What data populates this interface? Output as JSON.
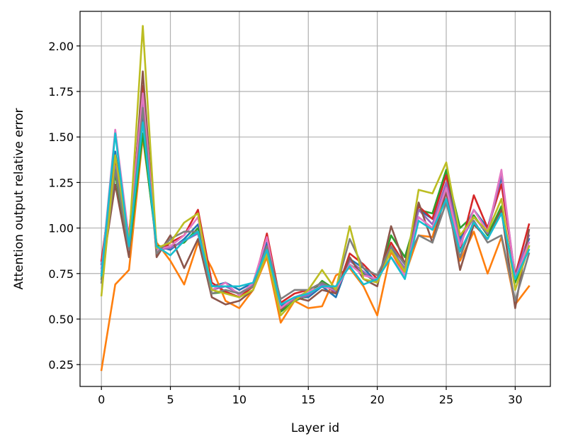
{
  "chart_data": {
    "type": "line",
    "xlabel": "Layer id",
    "ylabel": "Attention output relative error",
    "xlim": [
      -1.55,
      32.55
    ],
    "ylim": [
      0.13,
      2.19
    ],
    "xticks": [
      0,
      5,
      10,
      15,
      20,
      25,
      30
    ],
    "xtick_labels": [
      "0",
      "5",
      "10",
      "15",
      "20",
      "25",
      "30"
    ],
    "yticks": [
      0.25,
      0.5,
      0.75,
      1.0,
      1.25,
      1.5,
      1.75,
      2.0
    ],
    "ytick_labels": [
      "0.25",
      "0.50",
      "0.75",
      "1.00",
      "1.25",
      "1.50",
      "1.75",
      "2.00"
    ],
    "grid": true,
    "colors": [
      "#1f77b4",
      "#ff7f0e",
      "#2ca02c",
      "#d62728",
      "#9467bd",
      "#8c564b",
      "#e377c2",
      "#7f7f7f",
      "#bcbd22",
      "#17becf"
    ],
    "x": [
      0,
      1,
      2,
      3,
      4,
      5,
      6,
      7,
      8,
      9,
      10,
      11,
      12,
      13,
      14,
      15,
      16,
      17,
      18,
      19,
      20,
      21,
      22,
      23,
      24,
      25,
      26,
      27,
      28,
      29,
      30,
      31
    ],
    "series": [
      {
        "values": [
          0.8,
          1.42,
          0.93,
          1.62,
          0.9,
          0.88,
          0.94,
          1.02,
          0.68,
          0.7,
          0.66,
          0.7,
          0.92,
          0.57,
          0.62,
          0.62,
          0.68,
          0.62,
          0.83,
          0.78,
          0.7,
          0.9,
          0.76,
          1.1,
          1.05,
          1.3,
          0.94,
          1.1,
          1.0,
          1.28,
          0.72,
          0.94
        ]
      },
      {
        "values": [
          0.22,
          0.69,
          0.77,
          1.5,
          0.92,
          0.82,
          0.69,
          0.92,
          0.78,
          0.6,
          0.56,
          0.66,
          0.84,
          0.48,
          0.6,
          0.56,
          0.57,
          0.74,
          0.78,
          0.68,
          0.52,
          0.87,
          0.74,
          0.96,
          0.95,
          1.22,
          0.82,
          0.98,
          0.75,
          0.95,
          0.58,
          0.68
        ]
      },
      {
        "values": [
          0.72,
          1.3,
          0.86,
          1.52,
          0.9,
          0.9,
          0.92,
          1.0,
          0.64,
          0.65,
          0.62,
          0.68,
          0.88,
          0.54,
          0.6,
          0.63,
          0.71,
          0.66,
          0.8,
          0.75,
          0.7,
          0.96,
          0.84,
          1.1,
          1.08,
          1.32,
          1.0,
          1.07,
          0.96,
          1.12,
          0.7,
          0.9
        ]
      },
      {
        "values": [
          0.82,
          1.38,
          0.96,
          1.78,
          0.86,
          0.92,
          0.96,
          1.1,
          0.7,
          0.65,
          0.62,
          0.68,
          0.97,
          0.59,
          0.64,
          0.66,
          0.7,
          0.64,
          0.86,
          0.8,
          0.72,
          0.92,
          0.8,
          1.12,
          1.05,
          1.29,
          0.88,
          1.18,
          1.0,
          1.24,
          0.74,
          1.02
        ]
      },
      {
        "values": [
          0.78,
          1.34,
          0.9,
          1.7,
          0.88,
          0.89,
          0.93,
          0.97,
          0.66,
          0.68,
          0.64,
          0.69,
          0.88,
          0.56,
          0.61,
          0.63,
          0.69,
          0.65,
          0.82,
          0.76,
          0.7,
          0.88,
          0.78,
          1.1,
          1.02,
          1.25,
          0.92,
          1.06,
          0.97,
          1.3,
          0.73,
          0.96
        ]
      },
      {
        "values": [
          0.74,
          1.24,
          0.84,
          1.86,
          0.84,
          0.96,
          0.78,
          0.94,
          0.62,
          0.58,
          0.6,
          0.66,
          0.9,
          0.55,
          0.62,
          0.6,
          0.66,
          0.64,
          0.84,
          0.72,
          0.68,
          1.01,
          0.8,
          1.14,
          0.92,
          1.2,
          0.77,
          1.02,
          0.94,
          1.1,
          0.56,
          0.99
        ]
      },
      {
        "values": [
          0.76,
          1.54,
          0.94,
          1.74,
          0.88,
          0.9,
          0.96,
          1.06,
          0.66,
          0.7,
          0.63,
          0.7,
          0.95,
          0.56,
          0.62,
          0.65,
          0.68,
          0.66,
          0.8,
          0.74,
          0.72,
          0.84,
          0.74,
          1.06,
          1.0,
          1.22,
          0.9,
          1.1,
          0.98,
          1.32,
          0.72,
          0.92
        ]
      },
      {
        "values": [
          0.7,
          1.32,
          0.88,
          1.66,
          0.86,
          0.94,
          0.98,
          0.98,
          0.64,
          0.66,
          0.64,
          0.68,
          0.9,
          0.61,
          0.66,
          0.66,
          0.7,
          0.66,
          0.94,
          0.78,
          0.74,
          0.9,
          0.8,
          0.96,
          0.92,
          1.14,
          0.84,
          1.04,
          0.92,
          0.96,
          0.6,
          0.86
        ]
      },
      {
        "values": [
          0.63,
          1.4,
          0.92,
          2.11,
          0.89,
          0.92,
          1.03,
          1.08,
          0.66,
          0.64,
          0.62,
          0.66,
          0.86,
          0.52,
          0.6,
          0.66,
          0.77,
          0.66,
          1.01,
          0.72,
          0.7,
          0.88,
          0.76,
          1.21,
          1.19,
          1.36,
          0.96,
          1.06,
          0.98,
          1.16,
          0.66,
          0.9
        ]
      },
      {
        "values": [
          0.74,
          1.52,
          0.9,
          1.58,
          0.9,
          0.85,
          0.93,
          0.98,
          0.68,
          0.68,
          0.68,
          0.7,
          0.88,
          0.58,
          0.62,
          0.64,
          0.68,
          0.68,
          0.79,
          0.69,
          0.72,
          0.84,
          0.72,
          1.04,
          0.99,
          1.16,
          0.87,
          1.03,
          0.94,
          1.08,
          0.72,
          0.88
        ]
      }
    ]
  }
}
